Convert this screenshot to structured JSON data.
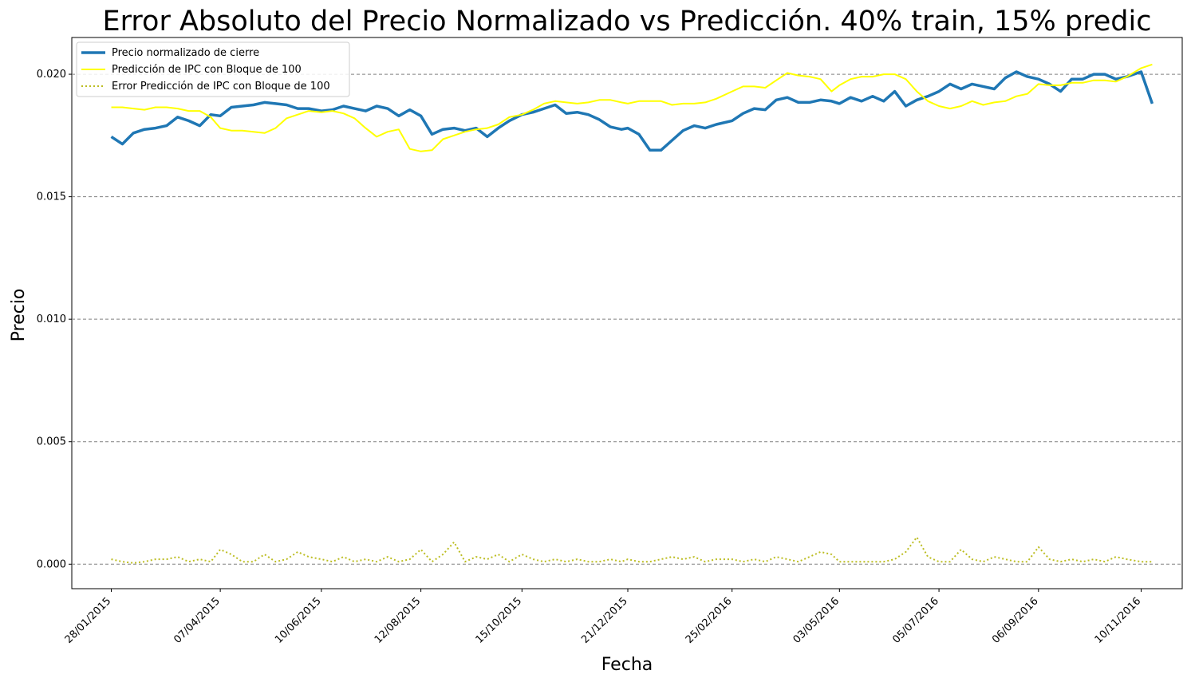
{
  "chart_data": {
    "type": "line",
    "title": "Error Absoluto del Precio Normalizado vs Predicción. 40% train, 15% predic",
    "xlabel": "Fecha",
    "ylabel": "Precio",
    "xlim": [
      "2015-01-03",
      "2016-12-06"
    ],
    "ylim": [
      -0.001,
      0.0215
    ],
    "x_ticks": [
      "28/01/2015",
      "07/04/2015",
      "10/06/2015",
      "12/08/2015",
      "15/10/2015",
      "21/12/2015",
      "25/02/2016",
      "03/05/2016",
      "05/07/2016",
      "06/09/2016",
      "10/11/2016"
    ],
    "y_ticks": [
      0.0,
      0.005,
      0.01,
      0.015,
      0.02
    ],
    "y_tick_labels": [
      "0.000",
      "0.005",
      "0.010",
      "0.015",
      "0.020"
    ],
    "grid": "horizontal dashed",
    "legend_position": "top-left",
    "series": [
      {
        "name": "Precio normalizado de cierre",
        "color": "#1f77b4",
        "style": "solid-thick",
        "x": [
          "2015-01-28",
          "2015-02-04",
          "2015-02-11",
          "2015-02-18",
          "2015-02-25",
          "2015-03-04",
          "2015-03-11",
          "2015-03-18",
          "2015-03-25",
          "2015-04-01",
          "2015-04-07",
          "2015-04-14",
          "2015-04-21",
          "2015-04-28",
          "2015-05-05",
          "2015-05-12",
          "2015-05-19",
          "2015-05-26",
          "2015-06-02",
          "2015-06-10",
          "2015-06-17",
          "2015-06-24",
          "2015-07-01",
          "2015-07-08",
          "2015-07-15",
          "2015-07-22",
          "2015-07-29",
          "2015-08-05",
          "2015-08-12",
          "2015-08-19",
          "2015-08-26",
          "2015-09-02",
          "2015-09-09",
          "2015-09-16",
          "2015-09-23",
          "2015-09-30",
          "2015-10-07",
          "2015-10-15",
          "2015-10-22",
          "2015-10-29",
          "2015-11-05",
          "2015-11-12",
          "2015-11-19",
          "2015-11-26",
          "2015-12-03",
          "2015-12-10",
          "2015-12-17",
          "2015-12-21",
          "2015-12-28",
          "2016-01-04",
          "2016-01-11",
          "2016-01-18",
          "2016-01-25",
          "2016-02-01",
          "2016-02-08",
          "2016-02-15",
          "2016-02-25",
          "2016-03-03",
          "2016-03-10",
          "2016-03-17",
          "2016-03-24",
          "2016-03-31",
          "2016-04-07",
          "2016-04-14",
          "2016-04-21",
          "2016-04-28",
          "2016-05-03",
          "2016-05-10",
          "2016-05-17",
          "2016-05-24",
          "2016-05-31",
          "2016-06-07",
          "2016-06-14",
          "2016-06-21",
          "2016-06-28",
          "2016-07-05",
          "2016-07-12",
          "2016-07-19",
          "2016-07-26",
          "2016-08-02",
          "2016-08-09",
          "2016-08-16",
          "2016-08-23",
          "2016-08-30",
          "2016-09-06",
          "2016-09-13",
          "2016-09-20",
          "2016-09-27",
          "2016-10-04",
          "2016-10-11",
          "2016-10-18",
          "2016-10-25",
          "2016-11-01",
          "2016-11-10",
          "2016-11-17"
        ],
        "y": [
          0.01745,
          0.01715,
          0.0176,
          0.01775,
          0.0178,
          0.0179,
          0.01825,
          0.0181,
          0.0179,
          0.01835,
          0.0183,
          0.01865,
          0.0187,
          0.01875,
          0.01885,
          0.0188,
          0.01875,
          0.0186,
          0.0186,
          0.0185,
          0.01855,
          0.0187,
          0.0186,
          0.0185,
          0.0187,
          0.0186,
          0.0183,
          0.01855,
          0.0183,
          0.01755,
          0.01775,
          0.0178,
          0.0177,
          0.0178,
          0.01745,
          0.0178,
          0.0181,
          0.01835,
          0.01845,
          0.0186,
          0.01875,
          0.0184,
          0.01845,
          0.01835,
          0.01815,
          0.01785,
          0.01775,
          0.0178,
          0.01755,
          0.0169,
          0.0169,
          0.0173,
          0.0177,
          0.0179,
          0.0178,
          0.01795,
          0.0181,
          0.0184,
          0.0186,
          0.01855,
          0.01895,
          0.01905,
          0.01885,
          0.01885,
          0.01895,
          0.0189,
          0.0188,
          0.01905,
          0.0189,
          0.0191,
          0.0189,
          0.0193,
          0.0187,
          0.01895,
          0.0191,
          0.0193,
          0.0196,
          0.0194,
          0.0196,
          0.0195,
          0.0194,
          0.01985,
          0.0201,
          0.0199,
          0.0198,
          0.0196,
          0.0193,
          0.0198,
          0.0198,
          0.02,
          0.02,
          0.0198,
          0.0199,
          0.0201,
          0.0188
        ]
      },
      {
        "name": "Predicción de IPC con Bloque de 100",
        "color": "#ffff00",
        "style": "solid-thin",
        "x": [
          "2015-01-28",
          "2015-02-04",
          "2015-02-11",
          "2015-02-18",
          "2015-02-25",
          "2015-03-04",
          "2015-03-11",
          "2015-03-18",
          "2015-03-25",
          "2015-04-01",
          "2015-04-07",
          "2015-04-14",
          "2015-04-21",
          "2015-04-28",
          "2015-05-05",
          "2015-05-12",
          "2015-05-19",
          "2015-05-26",
          "2015-06-02",
          "2015-06-10",
          "2015-06-17",
          "2015-06-24",
          "2015-07-01",
          "2015-07-08",
          "2015-07-15",
          "2015-07-22",
          "2015-07-29",
          "2015-08-05",
          "2015-08-12",
          "2015-08-19",
          "2015-08-26",
          "2015-09-02",
          "2015-09-09",
          "2015-09-16",
          "2015-09-23",
          "2015-09-30",
          "2015-10-07",
          "2015-10-15",
          "2015-10-22",
          "2015-10-29",
          "2015-11-05",
          "2015-11-12",
          "2015-11-19",
          "2015-11-26",
          "2015-12-03",
          "2015-12-10",
          "2015-12-17",
          "2015-12-21",
          "2015-12-28",
          "2016-01-04",
          "2016-01-11",
          "2016-01-18",
          "2016-01-25",
          "2016-02-01",
          "2016-02-08",
          "2016-02-15",
          "2016-02-25",
          "2016-03-03",
          "2016-03-10",
          "2016-03-17",
          "2016-03-24",
          "2016-03-31",
          "2016-04-07",
          "2016-04-14",
          "2016-04-21",
          "2016-04-28",
          "2016-05-03",
          "2016-05-10",
          "2016-05-17",
          "2016-05-24",
          "2016-05-31",
          "2016-06-07",
          "2016-06-14",
          "2016-06-21",
          "2016-06-28",
          "2016-07-05",
          "2016-07-12",
          "2016-07-19",
          "2016-07-26",
          "2016-08-02",
          "2016-08-09",
          "2016-08-16",
          "2016-08-23",
          "2016-08-30",
          "2016-09-06",
          "2016-09-13",
          "2016-09-20",
          "2016-09-27",
          "2016-10-04",
          "2016-10-11",
          "2016-10-18",
          "2016-10-25",
          "2016-11-01",
          "2016-11-10",
          "2016-11-17"
        ],
        "y": [
          0.01865,
          0.01865,
          0.0186,
          0.01855,
          0.01865,
          0.01865,
          0.0186,
          0.0185,
          0.0185,
          0.01825,
          0.0178,
          0.0177,
          0.0177,
          0.01765,
          0.0176,
          0.0178,
          0.0182,
          0.01835,
          0.0185,
          0.01845,
          0.0185,
          0.0184,
          0.0182,
          0.0178,
          0.01745,
          0.01765,
          0.01775,
          0.01695,
          0.01685,
          0.0169,
          0.01735,
          0.0175,
          0.01765,
          0.01775,
          0.0178,
          0.01795,
          0.01825,
          0.01835,
          0.01855,
          0.0188,
          0.0189,
          0.01885,
          0.0188,
          0.01885,
          0.01895,
          0.01895,
          0.01885,
          0.0188,
          0.0189,
          0.0189,
          0.0189,
          0.01875,
          0.0188,
          0.0188,
          0.01885,
          0.019,
          0.0193,
          0.0195,
          0.0195,
          0.01945,
          0.01975,
          0.02005,
          0.01995,
          0.0199,
          0.0198,
          0.0193,
          0.01955,
          0.0198,
          0.0199,
          0.0199,
          0.02,
          0.02,
          0.0198,
          0.0193,
          0.0189,
          0.0187,
          0.0186,
          0.0187,
          0.0189,
          0.01875,
          0.01885,
          0.0189,
          0.0191,
          0.0192,
          0.0196,
          0.01955,
          0.01955,
          0.01965,
          0.01965,
          0.01975,
          0.01975,
          0.0197,
          0.0199,
          0.02025,
          0.0204
        ]
      },
      {
        "name": "Error Predicción de IPC con Bloque de 100",
        "color": "#bcbd22",
        "style": "dotted",
        "x": [
          "2015-01-28",
          "2015-02-04",
          "2015-02-11",
          "2015-02-18",
          "2015-02-25",
          "2015-03-04",
          "2015-03-11",
          "2015-03-18",
          "2015-03-25",
          "2015-04-01",
          "2015-04-07",
          "2015-04-14",
          "2015-04-21",
          "2015-04-28",
          "2015-05-05",
          "2015-05-12",
          "2015-05-19",
          "2015-05-26",
          "2015-06-02",
          "2015-06-10",
          "2015-06-17",
          "2015-06-24",
          "2015-07-01",
          "2015-07-08",
          "2015-07-15",
          "2015-07-22",
          "2015-07-29",
          "2015-08-05",
          "2015-08-12",
          "2015-08-19",
          "2015-08-26",
          "2015-09-02",
          "2015-09-09",
          "2015-09-16",
          "2015-09-23",
          "2015-09-30",
          "2015-10-07",
          "2015-10-15",
          "2015-10-22",
          "2015-10-29",
          "2015-11-05",
          "2015-11-12",
          "2015-11-19",
          "2015-11-26",
          "2015-12-03",
          "2015-12-10",
          "2015-12-17",
          "2015-12-21",
          "2015-12-28",
          "2016-01-04",
          "2016-01-11",
          "2016-01-18",
          "2016-01-25",
          "2016-02-01",
          "2016-02-08",
          "2016-02-15",
          "2016-02-25",
          "2016-03-03",
          "2016-03-10",
          "2016-03-17",
          "2016-03-24",
          "2016-03-31",
          "2016-04-07",
          "2016-04-14",
          "2016-04-21",
          "2016-04-28",
          "2016-05-03",
          "2016-05-10",
          "2016-05-17",
          "2016-05-24",
          "2016-05-31",
          "2016-06-07",
          "2016-06-14",
          "2016-06-21",
          "2016-06-28",
          "2016-07-05",
          "2016-07-12",
          "2016-07-19",
          "2016-07-26",
          "2016-08-02",
          "2016-08-09",
          "2016-08-16",
          "2016-08-23",
          "2016-08-30",
          "2016-09-06",
          "2016-09-13",
          "2016-09-20",
          "2016-09-27",
          "2016-10-04",
          "2016-10-11",
          "2016-10-18",
          "2016-10-25",
          "2016-11-01",
          "2016-11-10",
          "2016-11-17"
        ],
        "y": [
          0.0002,
          0.0001,
          5e-05,
          0.0001,
          0.0002,
          0.0002,
          0.0003,
          0.0001,
          0.0002,
          0.0001,
          0.0006,
          0.0004,
          0.0001,
          0.0001,
          0.0004,
          0.0001,
          0.0002,
          0.0005,
          0.0003,
          0.0002,
          0.0001,
          0.0003,
          0.0001,
          0.0002,
          0.0001,
          0.0003,
          0.0001,
          0.0002,
          0.0006,
          0.0001,
          0.0004,
          0.0009,
          0.0001,
          0.0003,
          0.0002,
          0.0004,
          0.0001,
          0.0004,
          0.0002,
          0.0001,
          0.0002,
          0.0001,
          0.0002,
          0.0001,
          0.0001,
          0.0002,
          0.0001,
          0.0002,
          0.0001,
          0.0001,
          0.0002,
          0.0003,
          0.0002,
          0.0003,
          0.0001,
          0.0002,
          0.0002,
          0.0001,
          0.0002,
          0.0001,
          0.0003,
          0.0002,
          0.0001,
          0.0003,
          0.0005,
          0.0004,
          0.0001,
          0.0001,
          0.0001,
          0.0001,
          0.0001,
          0.0002,
          0.0005,
          0.0011,
          0.0003,
          0.0001,
          0.0001,
          0.0006,
          0.0002,
          0.0001,
          0.0003,
          0.0002,
          0.0001,
          0.0001,
          0.0007,
          0.0002,
          0.0001,
          0.0002,
          0.0001,
          0.0002,
          0.0001,
          0.0003,
          0.0002,
          0.0001,
          0.0001
        ]
      }
    ]
  }
}
